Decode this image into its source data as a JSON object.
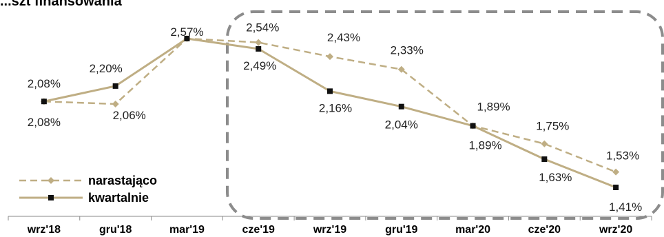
{
  "chart_data": {
    "type": "line",
    "title": "...szt finansowania",
    "categories": [
      "wrz'18",
      "gru'18",
      "mar'19",
      "cze'19",
      "wrz'19",
      "gru'19",
      "mar'20",
      "cze'20",
      "wrz'20"
    ],
    "series": [
      {
        "name": "narastająco",
        "values": [
          2.08,
          2.06,
          2.57,
          2.54,
          2.43,
          2.33,
          1.89,
          1.75,
          1.53
        ],
        "labels": [
          "",
          "2,06%",
          "",
          "2,54%",
          "2,43%",
          "2,33%",
          "1,89%",
          "1,75%",
          "1,53%"
        ]
      },
      {
        "name": "kwartalnie",
        "values": [
          2.08,
          2.2,
          2.57,
          2.49,
          2.16,
          2.04,
          1.89,
          1.63,
          1.41
        ],
        "labels": [
          "2,08%",
          "2,20%",
          "2,57%",
          "2,49%",
          "2,16%",
          "2,04%",
          "1,89%",
          "1,63%",
          "1,41%"
        ]
      }
    ],
    "line_color": "#bfae84",
    "marker_color": "#111111",
    "highlight_box_color": "#8c8c8c",
    "legend_position": "bottom-left"
  }
}
